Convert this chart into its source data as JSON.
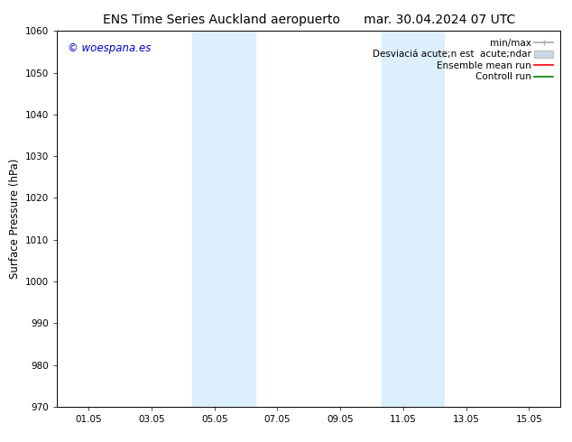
{
  "title_left": "ENS Time Series Auckland aeropuerto",
  "title_right": "mar. 30.04.2024 07 UTC",
  "ylabel": "Surface Pressure (hPa)",
  "ylim": [
    970,
    1060
  ],
  "yticks": [
    970,
    980,
    990,
    1000,
    1010,
    1020,
    1030,
    1040,
    1050,
    1060
  ],
  "xtick_labels": [
    "01.05",
    "03.05",
    "05.05",
    "07.05",
    "09.05",
    "11.05",
    "13.05",
    "15.05"
  ],
  "xtick_positions": [
    1,
    3,
    5,
    7,
    9,
    11,
    13,
    15
  ],
  "xlim": [
    0.0,
    16.0
  ],
  "shaded_regions": [
    {
      "x_start": 4.3,
      "x_end": 6.3,
      "color": "#ddeeff"
    },
    {
      "x_start": 10.3,
      "x_end": 12.3,
      "color": "#ddeeff"
    }
  ],
  "watermark_text": "© woespana.es",
  "watermark_color": "#0000cc",
  "legend_entries": [
    {
      "label": "min/max",
      "color": "#aaaaaa",
      "lw": 1.2
    },
    {
      "label": "Desviací acute;n est  acute;ndar",
      "color": "#c8d8e8",
      "lw": 5
    },
    {
      "label": "Ensemble mean run",
      "color": "red",
      "lw": 1.2
    },
    {
      "label": "Controll run",
      "color": "green",
      "lw": 1.2
    }
  ],
  "bg_color": "#ffffff",
  "title_fontsize": 10,
  "tick_fontsize": 7.5,
  "label_fontsize": 8.5,
  "legend_fontsize": 7.5
}
